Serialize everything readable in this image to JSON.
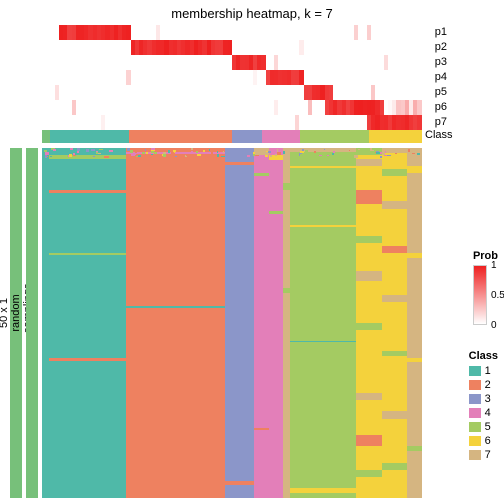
{
  "title": "membership heatmap, k = 7",
  "prob": {
    "label_prefix": "p",
    "n_rows": 7,
    "n_cols": 90,
    "gradient": {
      "low": "#ffffff",
      "high": "#ee2020"
    },
    "block_widths": [
      0.12,
      0.11,
      0.27,
      0.08,
      0.1,
      0.06,
      0.14,
      0.12
    ],
    "row_block_map": [
      0,
      0,
      1,
      2,
      3,
      4,
      5
    ]
  },
  "class_row": {
    "label": "Class",
    "segments": [
      {
        "w": 0.02,
        "c": "#77c07a"
      },
      {
        "w": 0.21,
        "c": "#4fb9a8"
      },
      {
        "w": 0.27,
        "c": "#ee8160"
      },
      {
        "w": 0.08,
        "c": "#8b96c9"
      },
      {
        "w": 0.1,
        "c": "#e37fb9"
      },
      {
        "w": 0.18,
        "c": "#a4cb62"
      },
      {
        "w": 0.14,
        "c": "#f4d23c"
      }
    ]
  },
  "main": {
    "class_colors": [
      "#4fb9a8",
      "#ee8160",
      "#8b96c9",
      "#e37fb9",
      "#a4cb62",
      "#f4d23c",
      "#d5b581"
    ],
    "columns": [
      {
        "w": 0.02,
        "c": 0,
        "noise": []
      },
      {
        "w": 0.21,
        "c": 0,
        "noise": [
          {
            "t": 0.02,
            "h": 0.01,
            "c": 4
          },
          {
            "t": 0.12,
            "h": 0.008,
            "c": 1
          },
          {
            "t": 0.3,
            "h": 0.006,
            "c": 4
          },
          {
            "t": 0.6,
            "h": 0.008,
            "c": 1
          }
        ]
      },
      {
        "w": 0.27,
        "c": 1,
        "noise": [
          {
            "t": 0.01,
            "h": 0.008,
            "c": 3
          },
          {
            "t": 0.45,
            "h": 0.006,
            "c": 0
          }
        ]
      },
      {
        "w": 0.08,
        "c": 2,
        "noise": [
          {
            "t": 0.04,
            "h": 0.008,
            "c": 1
          },
          {
            "t": 0.95,
            "h": 0.012,
            "c": 1
          }
        ]
      },
      {
        "w": 0.04,
        "c": 3,
        "noise": [
          {
            "t": 0.0,
            "h": 0.02,
            "c": 6
          },
          {
            "t": 0.07,
            "h": 0.01,
            "c": 4
          },
          {
            "t": 0.8,
            "h": 0.005,
            "c": 1
          }
        ]
      },
      {
        "w": 0.04,
        "c": 3,
        "noise": [
          {
            "t": 0.02,
            "h": 0.015,
            "c": 5
          },
          {
            "t": 0.18,
            "h": 0.008,
            "c": 4
          }
        ]
      },
      {
        "w": 0.02,
        "c": 6,
        "noise": [
          {
            "t": 0.1,
            "h": 0.02,
            "c": 4
          },
          {
            "t": 0.4,
            "h": 0.015,
            "c": 4
          }
        ]
      },
      {
        "w": 0.18,
        "c": 4,
        "noise": [
          {
            "t": 0.0,
            "h": 0.012,
            "c": 6
          },
          {
            "t": 0.05,
            "h": 0.006,
            "c": 5
          },
          {
            "t": 0.22,
            "h": 0.006,
            "c": 5
          },
          {
            "t": 0.55,
            "h": 0.005,
            "c": 0
          },
          {
            "t": 0.97,
            "h": 0.015,
            "c": 5
          }
        ]
      },
      {
        "w": 0.07,
        "c": 5,
        "noise": [
          {
            "t": 0.0,
            "h": 0.02,
            "c": 4
          },
          {
            "t": 0.03,
            "h": 0.02,
            "c": 6
          },
          {
            "t": 0.12,
            "h": 0.04,
            "c": 1
          },
          {
            "t": 0.25,
            "h": 0.02,
            "c": 4
          },
          {
            "t": 0.35,
            "h": 0.03,
            "c": 6
          },
          {
            "t": 0.5,
            "h": 0.02,
            "c": 4
          },
          {
            "t": 0.7,
            "h": 0.02,
            "c": 6
          },
          {
            "t": 0.82,
            "h": 0.03,
            "c": 1
          },
          {
            "t": 0.92,
            "h": 0.02,
            "c": 4
          }
        ]
      },
      {
        "w": 0.07,
        "c": 5,
        "noise": [
          {
            "t": 0.0,
            "h": 0.015,
            "c": 6
          },
          {
            "t": 0.06,
            "h": 0.02,
            "c": 4
          },
          {
            "t": 0.15,
            "h": 0.025,
            "c": 6
          },
          {
            "t": 0.28,
            "h": 0.02,
            "c": 1
          },
          {
            "t": 0.42,
            "h": 0.02,
            "c": 6
          },
          {
            "t": 0.58,
            "h": 0.015,
            "c": 4
          },
          {
            "t": 0.75,
            "h": 0.025,
            "c": 6
          },
          {
            "t": 0.9,
            "h": 0.02,
            "c": 4
          }
        ]
      },
      {
        "w": 0.04,
        "c": 6,
        "noise": [
          {
            "t": 0.05,
            "h": 0.02,
            "c": 5
          },
          {
            "t": 0.3,
            "h": 0.015,
            "c": 5
          },
          {
            "t": 0.6,
            "h": 0.01,
            "c": 5
          },
          {
            "t": 0.85,
            "h": 0.015,
            "c": 4
          }
        ]
      }
    ],
    "top_noise_colors": [
      "#d5b581",
      "#e37fb9",
      "#a4cb62",
      "#f4d23c",
      "#ee8160",
      "#4fb9a8",
      "#8b96c9"
    ]
  },
  "side_annotations": {
    "anno1": {
      "color": "#77c07a",
      "label": "50 x 1 random samplings"
    },
    "anno2": {
      "color": "#77c07a",
      "label": "top 1000 rows"
    }
  },
  "legends": {
    "prob": {
      "title": "Prob",
      "gradient_low": "#ffffff",
      "gradient_high": "#ee2020",
      "ticks": [
        {
          "v": "1",
          "p": 0
        },
        {
          "v": "0.5",
          "p": 0.5
        },
        {
          "v": "0",
          "p": 1
        }
      ]
    },
    "class": {
      "title": "Class",
      "items": [
        {
          "label": "1",
          "color": "#4fb9a8"
        },
        {
          "label": "2",
          "color": "#ee8160"
        },
        {
          "label": "3",
          "color": "#8b96c9"
        },
        {
          "label": "4",
          "color": "#e37fb9"
        },
        {
          "label": "5",
          "color": "#a4cb62"
        },
        {
          "label": "6",
          "color": "#f4d23c"
        },
        {
          "label": "7",
          "color": "#d5b581"
        }
      ]
    }
  },
  "typography": {
    "title_fontsize": 13,
    "label_fontsize": 11
  }
}
